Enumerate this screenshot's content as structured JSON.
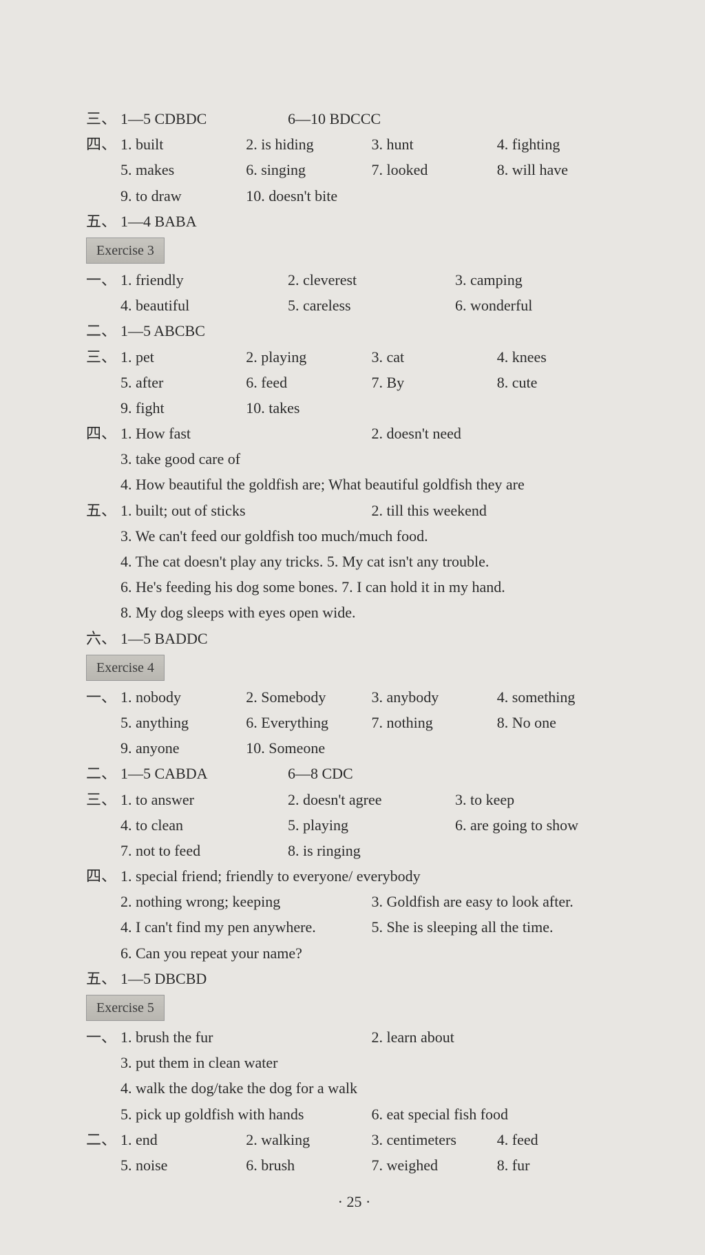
{
  "top": {
    "s3": {
      "label": "三、",
      "range1": "1—5 CDBDC",
      "range2": "6—10 BDCCC"
    },
    "s4": {
      "label": "四、",
      "r1": {
        "a": "1. built",
        "b": "2. is hiding",
        "c": "3. hunt",
        "d": "4. fighting"
      },
      "r2": {
        "a": "5. makes",
        "b": "6. singing",
        "c": "7. looked",
        "d": "8. will have"
      },
      "r3": {
        "a": "9. to draw",
        "b": "10. doesn't bite"
      }
    },
    "s5": {
      "label": "五、",
      "range": "1—4 BABA"
    }
  },
  "ex3": {
    "title": "Exercise 3",
    "s1": {
      "label": "一、",
      "r1": {
        "a": "1. friendly",
        "b": "2. cleverest",
        "c": "3. camping"
      },
      "r2": {
        "a": "4. beautiful",
        "b": "5. careless",
        "c": "6. wonderful"
      }
    },
    "s2": {
      "label": "二、",
      "range": "1—5 ABCBC"
    },
    "s3": {
      "label": "三、",
      "r1": {
        "a": "1. pet",
        "b": "2. playing",
        "c": "3. cat",
        "d": "4. knees"
      },
      "r2": {
        "a": "5. after",
        "b": "6. feed",
        "c": "7. By",
        "d": "8. cute"
      },
      "r3": {
        "a": "9. fight",
        "b": "10. takes"
      }
    },
    "s4": {
      "label": "四、",
      "r1": {
        "a": "1. How fast",
        "b": "2. doesn't need"
      },
      "r2": "3. take good care of",
      "r3": "4. How beautiful the goldfish are; What beautiful goldfish they are"
    },
    "s5": {
      "label": "五、",
      "r1": {
        "a": "1. built; out of sticks",
        "b": "2. till this weekend"
      },
      "r2": "3. We can't feed our goldfish too much/much food.",
      "r3": "4. The cat doesn't play any tricks.   5. My cat isn't any trouble.",
      "r4": "6. He's feeding his dog some bones. 7. I can hold it in my hand.",
      "r5": "8. My dog sleeps with eyes open wide."
    },
    "s6": {
      "label": "六、",
      "range": "1—5 BADDC"
    }
  },
  "ex4": {
    "title": "Exercise 4",
    "s1": {
      "label": "一、",
      "r1": {
        "a": "1. nobody",
        "b": "2. Somebody",
        "c": "3. anybody",
        "d": "4. something"
      },
      "r2": {
        "a": "5. anything",
        "b": "6. Everything",
        "c": "7. nothing",
        "d": "8. No one"
      },
      "r3": {
        "a": "9. anyone",
        "b": "10. Someone"
      }
    },
    "s2": {
      "label": "二、",
      "range1": "1—5 CABDA",
      "range2": "6—8 CDC"
    },
    "s3": {
      "label": "三、",
      "r1": {
        "a": "1. to answer",
        "b": "2. doesn't agree",
        "c": "3. to keep"
      },
      "r2": {
        "a": "4. to clean",
        "b": "5. playing",
        "c": "6. are going to show"
      },
      "r3": {
        "a": "7. not to feed",
        "b": "8. is ringing"
      }
    },
    "s4": {
      "label": "四、",
      "r1": "1. special friend; friendly to everyone/ everybody",
      "r2": {
        "a": "2. nothing wrong; keeping",
        "b": "3. Goldfish are easy to look after."
      },
      "r3": {
        "a": "4. I can't find my pen anywhere.",
        "b": "5. She is sleeping all the time."
      },
      "r4": "6. Can you repeat your name?"
    },
    "s5": {
      "label": "五、",
      "range": "1—5 DBCBD"
    }
  },
  "ex5": {
    "title": "Exercise 5",
    "s1": {
      "label": "一、",
      "r1": {
        "a": "1. brush the fur",
        "b": "2. learn about"
      },
      "r2": "3. put them in clean water",
      "r3": "4. walk the dog/take the dog for a walk",
      "r4": {
        "a": "5. pick up goldfish with hands",
        "b": "6. eat special fish food"
      }
    },
    "s2": {
      "label": "二、",
      "r1": {
        "a": "1. end",
        "b": "2. walking",
        "c": "3. centimeters",
        "d": "4. feed"
      },
      "r2": {
        "a": "5. noise",
        "b": "6. brush",
        "c": "7. weighed",
        "d": "8. fur"
      }
    }
  },
  "pageNum": "· 25 ·"
}
